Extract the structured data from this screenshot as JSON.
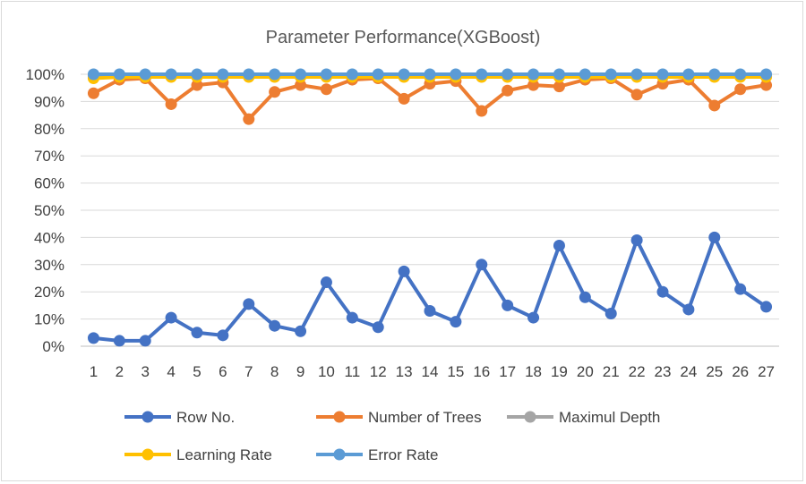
{
  "chart_data": {
    "type": "line",
    "title": "Parameter Performance(XGBoost)",
    "xlabel": "",
    "ylabel": "",
    "ylim": [
      0,
      100
    ],
    "y_ticks": [
      "0%",
      "10%",
      "20%",
      "30%",
      "40%",
      "50%",
      "60%",
      "70%",
      "80%",
      "90%",
      "100%"
    ],
    "grid": true,
    "legend_position": "bottom",
    "x": [
      "1",
      "2",
      "3",
      "4",
      "5",
      "6",
      "7",
      "8",
      "9",
      "10",
      "11",
      "12",
      "13",
      "14",
      "15",
      "16",
      "17",
      "18",
      "19",
      "20",
      "21",
      "22",
      "23",
      "24",
      "25",
      "26",
      "27"
    ],
    "series": [
      {
        "name": "Row No.",
        "color": "#4472c4",
        "values": [
          3,
          2,
          2,
          10.5,
          5,
          4,
          15.5,
          7.5,
          5.5,
          23.5,
          10.5,
          7,
          27.5,
          13,
          9,
          30,
          15,
          10.5,
          37,
          18,
          12,
          39,
          20,
          13.5,
          40,
          21,
          14.5
        ]
      },
      {
        "name": "Number of Trees",
        "color": "#ed7d31",
        "values": [
          93,
          98,
          98.5,
          89,
          96,
          97,
          83.5,
          93.5,
          96,
          94.5,
          98,
          98.5,
          91,
          96.5,
          97.5,
          86.5,
          94,
          96,
          95.5,
          98,
          98.5,
          92.5,
          96.5,
          98,
          88.5,
          94.5,
          96
        ]
      },
      {
        "name": "Maximul Depth",
        "color": "#a5a5a5",
        "values": [
          99.5,
          99.5,
          99.5,
          99.5,
          99.5,
          99.5,
          99.5,
          99.5,
          99.5,
          99.5,
          99.5,
          99.5,
          99.5,
          99.5,
          99.5,
          99.5,
          99.5,
          99.5,
          99.5,
          99.5,
          99.5,
          99.5,
          99.5,
          99.5,
          99.5,
          99.5,
          99.5
        ]
      },
      {
        "name": "Learning Rate",
        "color": "#ffc000",
        "values": [
          98.5,
          99,
          99,
          99,
          99,
          99,
          99,
          99,
          99,
          99,
          99,
          99,
          99,
          99,
          99,
          99,
          99,
          99,
          99,
          99,
          99,
          99,
          99,
          99,
          99,
          99,
          99
        ]
      },
      {
        "name": "Error Rate",
        "color": "#5b9bd5",
        "values": [
          100,
          100,
          100,
          100,
          100,
          100,
          100,
          100,
          100,
          100,
          100,
          100,
          100,
          100,
          100,
          100,
          100,
          100,
          100,
          100,
          100,
          100,
          100,
          100,
          100,
          100,
          100
        ]
      }
    ]
  }
}
